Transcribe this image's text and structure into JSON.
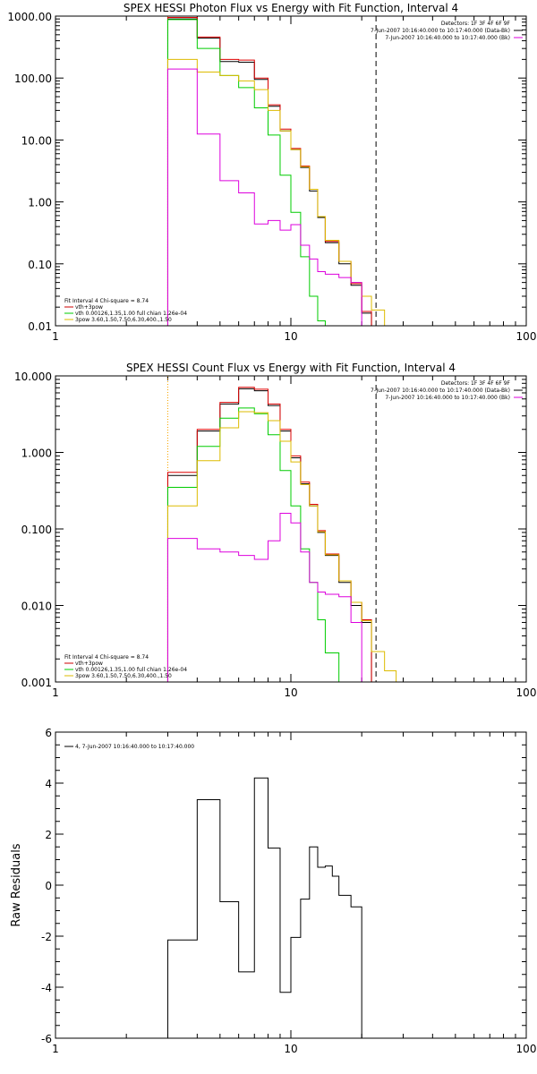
{
  "chart_data": [
    {
      "type": "line",
      "title": "SPEX HESSI Photon Flux vs Energy with Fit Function, Interval 4",
      "xscale": "log",
      "yscale": "log",
      "xlim": [
        1,
        100
      ],
      "ylim": [
        0.01,
        1000
      ],
      "xticks": [
        1,
        10,
        100
      ],
      "xticklabels": [
        "1",
        "10",
        "100"
      ],
      "yticks": [
        0.01,
        0.1,
        1,
        10,
        100,
        1000
      ],
      "yticklabels": [
        "0.01",
        "0.10",
        "1.00",
        "10.00",
        "100.00",
        "1000.00"
      ],
      "vlines": [
        {
          "x": 3,
          "style": "dotted",
          "color": "#000000"
        },
        {
          "x": 3,
          "style": "dotted",
          "color": "#ffaa00"
        },
        {
          "x": 23,
          "style": "dashed",
          "color": "#000000"
        }
      ],
      "info_lines": [
        "Detectors: 1F 3F 4F 6F 9F",
        "7-Jun-2007 10:16:40.000 to 10:17:40.000 (Data-Bk)",
        "7-Jun-2007 10:16:40.000 to 10:17:40.000 (Bk)"
      ],
      "info_colors": [
        "",
        "#000000",
        "#dd00dd"
      ],
      "legend_lines": [
        "Fit Interval  4    Chi-square = 8.74",
        "vth+3pow",
        "vth 0.00126,1.35,1.00  full chian 1.26e-04",
        "3pow 3.60,1.50,7.50,6.30,400.,1.50"
      ],
      "legend_colors": [
        "",
        "#cc0000",
        "#00cc00",
        "#ddbb00"
      ],
      "edges": [
        3,
        4,
        5,
        6,
        7,
        8,
        9,
        10,
        11,
        12,
        13,
        14,
        16,
        18,
        20,
        22,
        25,
        28,
        31
      ],
      "series": [
        {
          "color": "#000000",
          "values": [
            900,
            440,
            185,
            180,
            95,
            35,
            14,
            7,
            3.6,
            1.5,
            0.56,
            0.22,
            0.1,
            0.045,
            0.016,
            null,
            null,
            null
          ]
        },
        {
          "color": "#dd0000",
          "values": [
            950,
            460,
            200,
            195,
            100,
            37,
            15,
            7.3,
            3.8,
            1.6,
            0.58,
            0.23,
            0.11,
            0.048,
            0.017,
            null,
            null,
            null
          ]
        },
        {
          "color": "#00cc00",
          "values": [
            880,
            300,
            110,
            70,
            33,
            12,
            2.7,
            0.68,
            0.13,
            0.03,
            0.012,
            null,
            null,
            null,
            null,
            null,
            null,
            null
          ]
        },
        {
          "color": "#ddbb00",
          "values": [
            200,
            125,
            110,
            90,
            65,
            30,
            14,
            7,
            3.7,
            1.6,
            0.58,
            0.24,
            0.11,
            0.05,
            0.03,
            0.018,
            0.01,
            null
          ]
        },
        {
          "color": "#dd00dd",
          "values": [
            140,
            12.5,
            2.2,
            1.4,
            0.44,
            0.5,
            0.35,
            0.43,
            0.2,
            0.12,
            0.075,
            0.068,
            0.06,
            0.05,
            null,
            null,
            null,
            null
          ]
        }
      ]
    },
    {
      "type": "line",
      "title": "SPEX HESSI Count Flux vs Energy with Fit Function, Interval 4",
      "xscale": "log",
      "yscale": "log",
      "xlim": [
        1,
        100
      ],
      "ylim": [
        0.001,
        10
      ],
      "xticks": [
        1,
        10,
        100
      ],
      "xticklabels": [
        "1",
        "10",
        "100"
      ],
      "yticks": [
        0.001,
        0.01,
        0.1,
        1,
        10
      ],
      "yticklabels": [
        "0.001",
        "0.010",
        "0.100",
        "1.000",
        "10.000"
      ],
      "vlines": [
        {
          "x": 3,
          "style": "dotted",
          "color": "#000000"
        },
        {
          "x": 3,
          "style": "dotted",
          "color": "#ffaa00"
        },
        {
          "x": 23,
          "style": "dashed",
          "color": "#000000"
        }
      ],
      "info_lines": [
        "Detectors: 1F 3F 4F 6F 9F",
        "7-Jun-2007 10:16:40.000 to 10:17:40.000 (Data-Bk)",
        "7-Jun-2007 10:16:40.000 to 10:17:40.000 (Bk)"
      ],
      "info_colors": [
        "",
        "#000000",
        "#dd00dd"
      ],
      "legend_lines": [
        "Fit Interval  4    Chi-square = 8.74",
        "vth+3pow",
        "vth 0.00126,1.35,1.00  full chian 1.26e-04",
        "3pow 3.60,1.50,7.50,6.30,400.,1.50"
      ],
      "legend_colors": [
        "",
        "#cc0000",
        "#00cc00",
        "#ddbb00"
      ],
      "edges": [
        3,
        4,
        5,
        6,
        7,
        8,
        9,
        10,
        11,
        12,
        13,
        14,
        16,
        18,
        20,
        22,
        25,
        28,
        31
      ],
      "series": [
        {
          "color": "#000000",
          "values": [
            0.5,
            1.9,
            4.3,
            6.8,
            6.4,
            4.1,
            1.9,
            0.85,
            0.39,
            0.2,
            0.09,
            0.045,
            0.02,
            0.01,
            0.006,
            null,
            null,
            null
          ]
        },
        {
          "color": "#dd0000",
          "values": [
            0.55,
            2.0,
            4.5,
            7.1,
            6.7,
            4.3,
            2.0,
            0.9,
            0.41,
            0.21,
            0.095,
            0.047,
            0.021,
            0.011,
            0.0065,
            null,
            null,
            null
          ]
        },
        {
          "color": "#00cc00",
          "values": [
            0.35,
            1.2,
            2.8,
            3.8,
            3.2,
            1.7,
            0.58,
            0.2,
            0.055,
            0.02,
            0.0065,
            0.0024,
            0.001,
            null,
            null,
            null,
            null,
            null
          ]
        },
        {
          "color": "#ddbb00",
          "values": [
            0.2,
            0.78,
            2.1,
            3.4,
            3.3,
            2.6,
            1.4,
            0.75,
            0.38,
            0.2,
            0.092,
            0.046,
            0.021,
            0.011,
            0.0063,
            0.0025,
            0.0014,
            null
          ]
        },
        {
          "color": "#dd00dd",
          "values": [
            0.075,
            0.055,
            0.05,
            0.045,
            0.04,
            0.07,
            0.16,
            0.12,
            0.05,
            0.02,
            0.015,
            0.014,
            0.013,
            0.006,
            null,
            null,
            null,
            null
          ]
        }
      ]
    },
    {
      "type": "line",
      "title": "",
      "ylabel": "Raw Residuals",
      "xscale": "log",
      "yscale": "linear",
      "xlim": [
        1,
        100
      ],
      "ylim": [
        -6,
        6
      ],
      "xticks": [
        1,
        10,
        100
      ],
      "xticklabels": [
        "1",
        "10",
        "100"
      ],
      "yticks": [
        -6,
        -4,
        -2,
        0,
        2,
        4,
        6
      ],
      "yticklabels": [
        "-6",
        "-4",
        "-2",
        "0",
        "2",
        "4",
        "6"
      ],
      "vlines": [],
      "info_lines": [],
      "info_colors": [],
      "legend_lines": [
        "4,  7-Jun-2007 10:16:40.000 to 10:17:40.000"
      ],
      "legend_colors": [
        "#000000"
      ],
      "edges": [
        3,
        4,
        5,
        6,
        7,
        8,
        9,
        10,
        11,
        12,
        13,
        14,
        15,
        16,
        18,
        20,
        22
      ],
      "series": [
        {
          "color": "#000000",
          "values": [
            -2.15,
            3.35,
            -0.65,
            -3.4,
            4.2,
            1.45,
            -4.2,
            -2.05,
            -0.55,
            1.5,
            0.7,
            0.75,
            0.35,
            -0.4,
            -0.85,
            null
          ]
        }
      ]
    }
  ]
}
